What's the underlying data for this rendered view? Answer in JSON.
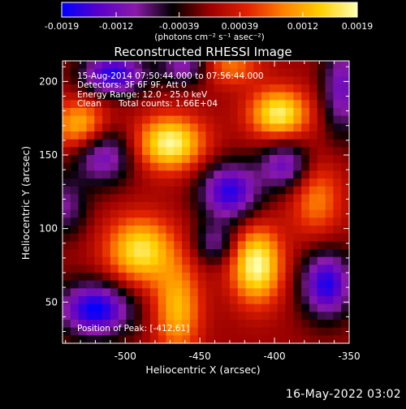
{
  "colorbar": {
    "tick_labels": [
      "-0.0019",
      "-0.0012",
      "-0.00039",
      "0.00039",
      "0.0012",
      "0.0019"
    ],
    "tick_values": [
      -0.0019,
      -0.0012,
      -0.00039,
      0.00039,
      0.0012,
      0.0019
    ],
    "range": [
      -0.0019,
      0.0019
    ],
    "unit_label": "(photons cm⁻² s⁻¹ asec⁻²)",
    "colors": [
      "#0000ff",
      "#5a00c8",
      "#8a1aa8",
      "#000000",
      "#9a0000",
      "#e02000",
      "#ff8000",
      "#ffd000",
      "#ffffb0"
    ]
  },
  "annotations": {
    "time_range": "15-Aug-2014 07:50:44.000 to 07:56:44.000",
    "detectors": "Detectors: 3F 6F 9F, Att 0",
    "energy_range": "Energy Range: 12.0 - 25.0 keV",
    "algorithm": "Clean",
    "total_counts": "Total counts: 1.66E+04",
    "peak_position": "Position of Peak: [-412,61]"
  },
  "footer": {
    "timestamp": "16-May-2022 03:02"
  },
  "chart_data": {
    "type": "heatmap",
    "title": "Reconstructed RHESSI Image",
    "xlabel": "Heliocentric X (arcsec)",
    "ylabel": "Heliocentric Y (arcsec)",
    "xlim": [
      -542,
      -350
    ],
    "ylim": [
      22,
      214
    ],
    "x_ticks": [
      -500,
      -450,
      -400,
      -350
    ],
    "x_tick_labels": [
      "-500",
      "-450",
      "-400",
      "-350"
    ],
    "y_ticks": [
      50,
      100,
      150,
      200
    ],
    "y_tick_labels": [
      "50",
      "100",
      "150",
      "200"
    ],
    "peak": [
      -412,
      61
    ],
    "grid_size": 36,
    "blobs": [
      {
        "x": -470,
        "y": 158,
        "amp": 0.00185,
        "sx": 16,
        "sy": 13
      },
      {
        "x": -397,
        "y": 178,
        "amp": 0.00175,
        "sx": 14,
        "sy": 12
      },
      {
        "x": -412,
        "y": 75,
        "amp": 0.0019,
        "sx": 12,
        "sy": 18
      },
      {
        "x": -490,
        "y": 85,
        "amp": 0.00165,
        "sx": 16,
        "sy": 16
      },
      {
        "x": -530,
        "y": 170,
        "amp": 0.0014,
        "sx": 13,
        "sy": 12
      },
      {
        "x": -465,
        "y": 45,
        "amp": 0.0013,
        "sx": 11,
        "sy": 22
      },
      {
        "x": -372,
        "y": 120,
        "amp": 0.00095,
        "sx": 12,
        "sy": 18
      },
      {
        "x": -430,
        "y": 210,
        "amp": 0.0009,
        "sx": 14,
        "sy": 9
      },
      {
        "x": -520,
        "y": 45,
        "amp": -0.0019,
        "sx": 17,
        "sy": 13
      },
      {
        "x": -508,
        "y": 205,
        "amp": -0.00175,
        "sx": 15,
        "sy": 10
      },
      {
        "x": -430,
        "y": 125,
        "amp": -0.0017,
        "sx": 14,
        "sy": 14
      },
      {
        "x": -515,
        "y": 150,
        "amp": -0.0013,
        "sx": 14,
        "sy": 14
      },
      {
        "x": -365,
        "y": 62,
        "amp": -0.00175,
        "sx": 12,
        "sy": 16
      },
      {
        "x": -393,
        "y": 143,
        "amp": -0.0013,
        "sx": 12,
        "sy": 12
      },
      {
        "x": -460,
        "y": 210,
        "amp": -0.0011,
        "sx": 12,
        "sy": 9
      },
      {
        "x": -355,
        "y": 195,
        "amp": -0.00125,
        "sx": 9,
        "sy": 22
      },
      {
        "x": -540,
        "y": 115,
        "amp": -0.0009,
        "sx": 10,
        "sy": 14
      },
      {
        "x": -440,
        "y": 90,
        "amp": -0.0009,
        "sx": 10,
        "sy": 10
      }
    ]
  }
}
